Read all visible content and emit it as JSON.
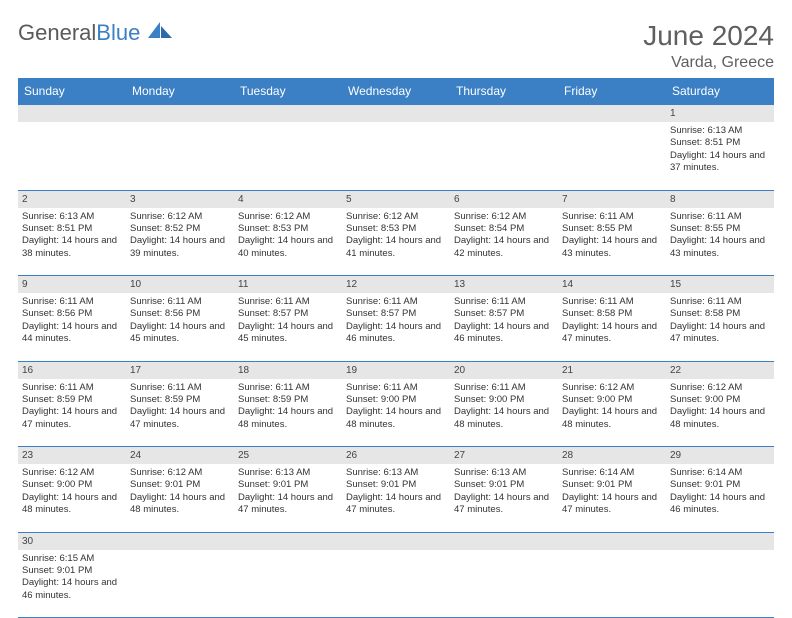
{
  "brand": {
    "part1": "General",
    "part2": "Blue"
  },
  "title": "June 2024",
  "location": "Varda, Greece",
  "accent_color": "#3b7fc4",
  "day_header_bg": "#e6e6e6",
  "text_color": "#333333",
  "weekdays": [
    "Sunday",
    "Monday",
    "Tuesday",
    "Wednesday",
    "Thursday",
    "Friday",
    "Saturday"
  ],
  "weeks": [
    [
      null,
      null,
      null,
      null,
      null,
      null,
      {
        "n": "1",
        "sr": "6:13 AM",
        "ss": "8:51 PM",
        "dl": "14 hours and 37 minutes."
      }
    ],
    [
      {
        "n": "2",
        "sr": "6:13 AM",
        "ss": "8:51 PM",
        "dl": "14 hours and 38 minutes."
      },
      {
        "n": "3",
        "sr": "6:12 AM",
        "ss": "8:52 PM",
        "dl": "14 hours and 39 minutes."
      },
      {
        "n": "4",
        "sr": "6:12 AM",
        "ss": "8:53 PM",
        "dl": "14 hours and 40 minutes."
      },
      {
        "n": "5",
        "sr": "6:12 AM",
        "ss": "8:53 PM",
        "dl": "14 hours and 41 minutes."
      },
      {
        "n": "6",
        "sr": "6:12 AM",
        "ss": "8:54 PM",
        "dl": "14 hours and 42 minutes."
      },
      {
        "n": "7",
        "sr": "6:11 AM",
        "ss": "8:55 PM",
        "dl": "14 hours and 43 minutes."
      },
      {
        "n": "8",
        "sr": "6:11 AM",
        "ss": "8:55 PM",
        "dl": "14 hours and 43 minutes."
      }
    ],
    [
      {
        "n": "9",
        "sr": "6:11 AM",
        "ss": "8:56 PM",
        "dl": "14 hours and 44 minutes."
      },
      {
        "n": "10",
        "sr": "6:11 AM",
        "ss": "8:56 PM",
        "dl": "14 hours and 45 minutes."
      },
      {
        "n": "11",
        "sr": "6:11 AM",
        "ss": "8:57 PM",
        "dl": "14 hours and 45 minutes."
      },
      {
        "n": "12",
        "sr": "6:11 AM",
        "ss": "8:57 PM",
        "dl": "14 hours and 46 minutes."
      },
      {
        "n": "13",
        "sr": "6:11 AM",
        "ss": "8:57 PM",
        "dl": "14 hours and 46 minutes."
      },
      {
        "n": "14",
        "sr": "6:11 AM",
        "ss": "8:58 PM",
        "dl": "14 hours and 47 minutes."
      },
      {
        "n": "15",
        "sr": "6:11 AM",
        "ss": "8:58 PM",
        "dl": "14 hours and 47 minutes."
      }
    ],
    [
      {
        "n": "16",
        "sr": "6:11 AM",
        "ss": "8:59 PM",
        "dl": "14 hours and 47 minutes."
      },
      {
        "n": "17",
        "sr": "6:11 AM",
        "ss": "8:59 PM",
        "dl": "14 hours and 47 minutes."
      },
      {
        "n": "18",
        "sr": "6:11 AM",
        "ss": "8:59 PM",
        "dl": "14 hours and 48 minutes."
      },
      {
        "n": "19",
        "sr": "6:11 AM",
        "ss": "9:00 PM",
        "dl": "14 hours and 48 minutes."
      },
      {
        "n": "20",
        "sr": "6:11 AM",
        "ss": "9:00 PM",
        "dl": "14 hours and 48 minutes."
      },
      {
        "n": "21",
        "sr": "6:12 AM",
        "ss": "9:00 PM",
        "dl": "14 hours and 48 minutes."
      },
      {
        "n": "22",
        "sr": "6:12 AM",
        "ss": "9:00 PM",
        "dl": "14 hours and 48 minutes."
      }
    ],
    [
      {
        "n": "23",
        "sr": "6:12 AM",
        "ss": "9:00 PM",
        "dl": "14 hours and 48 minutes."
      },
      {
        "n": "24",
        "sr": "6:12 AM",
        "ss": "9:01 PM",
        "dl": "14 hours and 48 minutes."
      },
      {
        "n": "25",
        "sr": "6:13 AM",
        "ss": "9:01 PM",
        "dl": "14 hours and 47 minutes."
      },
      {
        "n": "26",
        "sr": "6:13 AM",
        "ss": "9:01 PM",
        "dl": "14 hours and 47 minutes."
      },
      {
        "n": "27",
        "sr": "6:13 AM",
        "ss": "9:01 PM",
        "dl": "14 hours and 47 minutes."
      },
      {
        "n": "28",
        "sr": "6:14 AM",
        "ss": "9:01 PM",
        "dl": "14 hours and 47 minutes."
      },
      {
        "n": "29",
        "sr": "6:14 AM",
        "ss": "9:01 PM",
        "dl": "14 hours and 46 minutes."
      }
    ],
    [
      {
        "n": "30",
        "sr": "6:15 AM",
        "ss": "9:01 PM",
        "dl": "14 hours and 46 minutes."
      },
      null,
      null,
      null,
      null,
      null,
      null
    ]
  ],
  "labels": {
    "sunrise": "Sunrise: ",
    "sunset": "Sunset: ",
    "daylight": "Daylight: "
  }
}
